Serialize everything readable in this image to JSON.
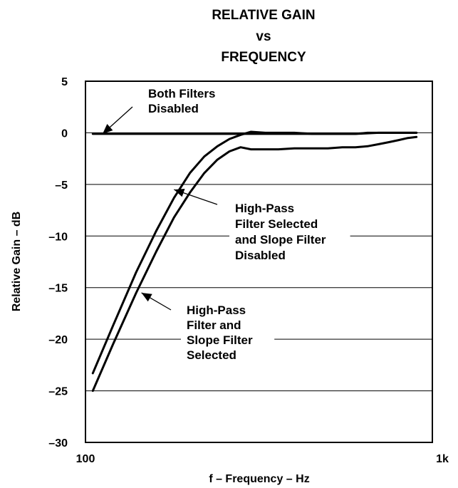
{
  "chart_data": {
    "type": "line",
    "title": [
      "RELATIVE GAIN",
      "vs",
      "FREQUENCY"
    ],
    "xlabel": "f – Frequency – Hz",
    "ylabel": "Relative Gain – dB",
    "x_scale": "log",
    "xlim": [
      100,
      1000
    ],
    "ylim": [
      -30,
      5
    ],
    "x_tick_labels": [
      "100",
      "1k"
    ],
    "y_ticks": [
      5,
      0,
      -5,
      -10,
      -15,
      -20,
      -25,
      -30
    ],
    "y_tick_labels": [
      "5",
      "0",
      "–5",
      "–10",
      "–15",
      "–20",
      "–25",
      "–30"
    ],
    "grid": "horizontal",
    "series": [
      {
        "name": "Both Filters Disabled",
        "x": [
          105,
          150,
          200,
          250,
          300,
          400,
          500,
          600,
          700,
          800,
          900
        ],
        "y": [
          -0.1,
          -0.1,
          -0.1,
          -0.1,
          -0.1,
          -0.1,
          -0.1,
          -0.1,
          0.0,
          0.0,
          0.0
        ]
      },
      {
        "name": "High-Pass Filter Selected and Slope Filter Disabled",
        "x": [
          105,
          120,
          140,
          160,
          180,
          200,
          220,
          240,
          260,
          280,
          300,
          330,
          360,
          400,
          450,
          500,
          550,
          600,
          650,
          700,
          800,
          900
        ],
        "y": [
          -23.3,
          -18.7,
          -13.5,
          -9.5,
          -6.3,
          -3.9,
          -2.3,
          -1.3,
          -0.6,
          -0.2,
          0.1,
          0.0,
          0.0,
          0.0,
          -0.1,
          -0.1,
          -0.1,
          -0.1,
          0.0,
          0.0,
          0.0,
          0.0
        ]
      },
      {
        "name": "High-Pass Filter and Slope Filter Selected",
        "x": [
          105,
          120,
          140,
          160,
          180,
          200,
          220,
          240,
          260,
          280,
          300,
          330,
          360,
          400,
          450,
          500,
          550,
          600,
          650,
          700,
          750,
          800,
          850,
          900
        ],
        "y": [
          -25.0,
          -20.5,
          -15.5,
          -11.5,
          -8.2,
          -5.8,
          -3.9,
          -2.6,
          -1.8,
          -1.4,
          -1.6,
          -1.6,
          -1.6,
          -1.5,
          -1.5,
          -1.5,
          -1.4,
          -1.4,
          -1.3,
          -1.1,
          -0.9,
          -0.7,
          -0.5,
          -0.4
        ]
      }
    ],
    "annotations": [
      {
        "lines": [
          "Both Filters",
          "Disabled"
        ],
        "target_x": 112,
        "target_y": -0.1
      },
      {
        "lines": [
          "High-Pass",
          "Filter Selected",
          "and Slope Filter",
          "Disabled"
        ],
        "target_x": 180,
        "target_y": -5.5
      },
      {
        "lines": [
          "High-Pass",
          "Filter and",
          "Slope Filter",
          "Selected"
        ],
        "target_x": 145,
        "target_y": -15.5
      }
    ]
  }
}
